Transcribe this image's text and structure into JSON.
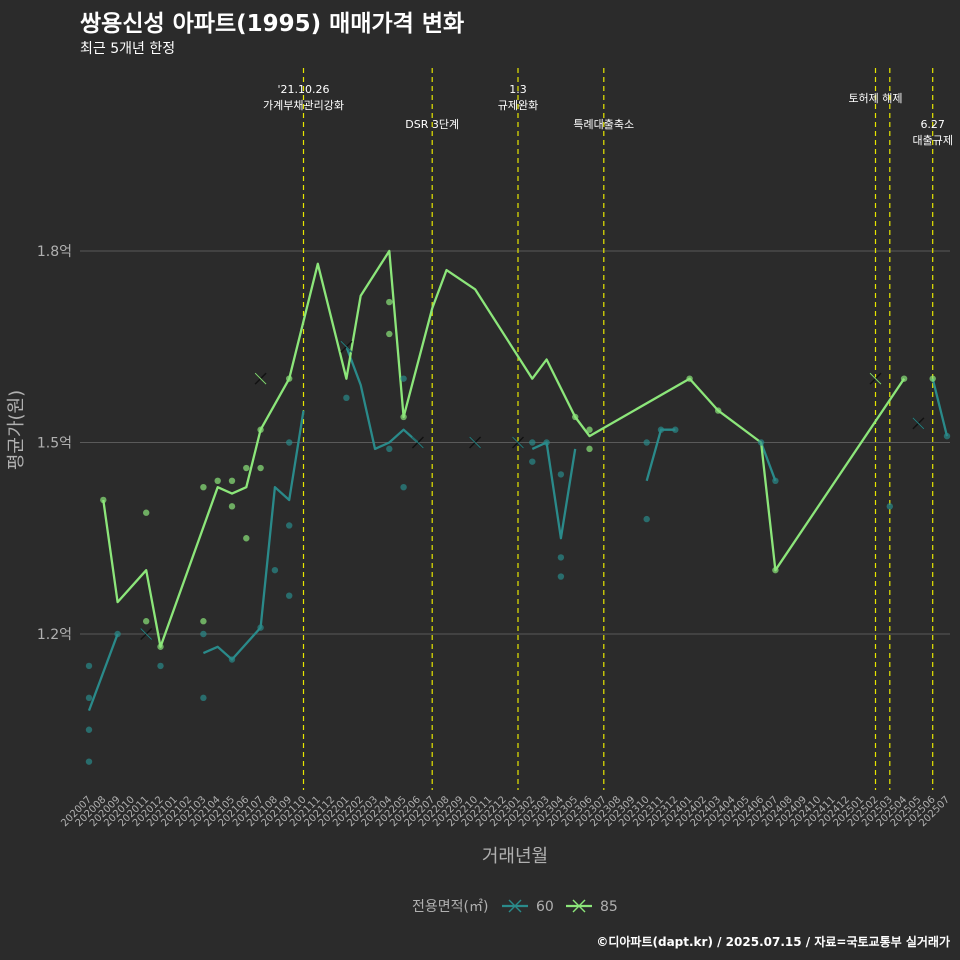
{
  "header": {
    "title": "쌍용신성 아파트(1995) 매매가격 변화",
    "subtitle": "최근 5개년 한정"
  },
  "caption": "©디아파트(dapt.kr) / 2025.07.15 / 자료=국토교통부 실거래가",
  "colors": {
    "background": "#2b2b2b",
    "grid": "#5a5a5a",
    "axis_text": "#b0b0b0",
    "event_line": "#e6e600",
    "series_60": "#2a8a8a",
    "series_85": "#8ce67a"
  },
  "chart_data": {
    "type": "line",
    "xlabel": "거래년월",
    "ylabel": "평균가(원)",
    "ylim": [
      1.0,
      1.93
    ],
    "y_ticks": [
      {
        "value": 1.2,
        "label": "1.2억"
      },
      {
        "value": 1.5,
        "label": "1.5억"
      },
      {
        "value": 1.8,
        "label": "1.8억"
      }
    ],
    "categories": [
      "202007",
      "202008",
      "202009",
      "202010",
      "202011",
      "202012",
      "202101",
      "202102",
      "202103",
      "202104",
      "202105",
      "202106",
      "202107",
      "202108",
      "202109",
      "202110",
      "202111",
      "202112",
      "202201",
      "202202",
      "202203",
      "202204",
      "202205",
      "202206",
      "202207",
      "202208",
      "202209",
      "202210",
      "202211",
      "202212",
      "202301",
      "202302",
      "202303",
      "202304",
      "202305",
      "202306",
      "202307",
      "202308",
      "202309",
      "202310",
      "202311",
      "202312",
      "202401",
      "202402",
      "202403",
      "202404",
      "202405",
      "202406",
      "202407",
      "202408",
      "202409",
      "202410",
      "202411",
      "202412",
      "202501",
      "202502",
      "202503",
      "202504",
      "202505",
      "202506",
      "202507"
    ],
    "legend": {
      "title": "전용면적(㎡)",
      "position": "bottom"
    },
    "series": [
      {
        "name": "60",
        "color": "#2a8a8a",
        "line_segments": [
          [
            [
              "202007",
              1.08
            ],
            [
              "202009",
              1.2
            ]
          ],
          [
            [
              "202103",
              1.17
            ],
            [
              "202104",
              1.18
            ],
            [
              "202105",
              1.16
            ],
            [
              "202107",
              1.21
            ],
            [
              "202108",
              1.43
            ],
            [
              "202109",
              1.41
            ],
            [
              "202110",
              1.55
            ]
          ],
          [
            [
              "202201",
              1.65
            ],
            [
              "202202",
              1.59
            ],
            [
              "202203",
              1.49
            ],
            [
              "202204",
              1.5
            ],
            [
              "202205",
              1.52
            ],
            [
              "202206",
              1.5
            ]
          ],
          [
            [
              "202302",
              1.49
            ],
            [
              "202303",
              1.5
            ],
            [
              "202304",
              1.35
            ],
            [
              "202305",
              1.49
            ]
          ],
          [
            [
              "202310",
              1.44
            ],
            [
              "202311",
              1.52
            ],
            [
              "202312",
              1.52
            ]
          ],
          [
            [
              "202406",
              1.5
            ],
            [
              "202407",
              1.44
            ]
          ],
          [
            [
              "202506",
              1.6
            ],
            [
              "202507",
              1.51
            ]
          ]
        ],
        "points": [
          [
            "202007",
            1.15
          ],
          [
            "202007",
            1.1
          ],
          [
            "202007",
            1.05
          ],
          [
            "202007",
            1.0
          ],
          [
            "202009",
            1.2
          ],
          [
            "202012",
            1.15
          ],
          [
            "202103",
            1.2
          ],
          [
            "202103",
            1.1
          ],
          [
            "202105",
            1.16
          ],
          [
            "202107",
            1.21
          ],
          [
            "202108",
            1.3
          ],
          [
            "202109",
            1.26
          ],
          [
            "202109",
            1.37
          ],
          [
            "202109",
            1.5
          ],
          [
            "202201",
            1.57
          ],
          [
            "202204",
            1.49
          ],
          [
            "202205",
            1.6
          ],
          [
            "202205",
            1.43
          ],
          [
            "202302",
            1.47
          ],
          [
            "202302",
            1.5
          ],
          [
            "202303",
            1.5
          ],
          [
            "202304",
            1.45
          ],
          [
            "202304",
            1.32
          ],
          [
            "202304",
            1.29
          ],
          [
            "202310",
            1.5
          ],
          [
            "202310",
            1.38
          ],
          [
            "202311",
            1.52
          ],
          [
            "202312",
            1.52
          ],
          [
            "202406",
            1.5
          ],
          [
            "202407",
            1.44
          ],
          [
            "202503",
            1.4
          ],
          [
            "202507",
            1.51
          ]
        ],
        "cross_points": [
          [
            "202011",
            1.2
          ],
          [
            "202201",
            1.65
          ],
          [
            "202206",
            1.5
          ],
          [
            "202210",
            1.5
          ],
          [
            "202301",
            1.5
          ],
          [
            "202505",
            1.53
          ]
        ]
      },
      {
        "name": "85",
        "color": "#8ce67a",
        "line_segments": [
          [
            [
              "202008",
              1.41
            ],
            [
              "202009",
              1.25
            ],
            [
              "202011",
              1.3
            ],
            [
              "202012",
              1.18
            ],
            [
              "202104",
              1.43
            ],
            [
              "202105",
              1.42
            ],
            [
              "202106",
              1.43
            ],
            [
              "202107",
              1.52
            ],
            [
              "202109",
              1.6
            ],
            [
              "202111",
              1.78
            ],
            [
              "202201",
              1.6
            ],
            [
              "202202",
              1.73
            ],
            [
              "202204",
              1.8
            ],
            [
              "202205",
              1.54
            ],
            [
              "202207",
              1.71
            ],
            [
              "202208",
              1.77
            ],
            [
              "202210",
              1.74
            ],
            [
              "202302",
              1.6
            ],
            [
              "202303",
              1.63
            ],
            [
              "202305",
              1.54
            ],
            [
              "202306",
              1.51
            ],
            [
              "202401",
              1.6
            ],
            [
              "202403",
              1.55
            ],
            [
              "202406",
              1.5
            ],
            [
              "202407",
              1.3
            ],
            [
              "202504",
              1.6
            ]
          ]
        ],
        "points": [
          [
            "202008",
            1.41
          ],
          [
            "202011",
            1.39
          ],
          [
            "202011",
            1.22
          ],
          [
            "202012",
            1.18
          ],
          [
            "202103",
            1.43
          ],
          [
            "202103",
            1.22
          ],
          [
            "202104",
            1.44
          ],
          [
            "202105",
            1.44
          ],
          [
            "202105",
            1.4
          ],
          [
            "202106",
            1.46
          ],
          [
            "202106",
            1.35
          ],
          [
            "202107",
            1.46
          ],
          [
            "202107",
            1.52
          ],
          [
            "202109",
            1.6
          ],
          [
            "202204",
            1.72
          ],
          [
            "202204",
            1.67
          ],
          [
            "202205",
            1.54
          ],
          [
            "202305",
            1.54
          ],
          [
            "202306",
            1.52
          ],
          [
            "202306",
            1.49
          ],
          [
            "202401",
            1.6
          ],
          [
            "202403",
            1.55
          ],
          [
            "202407",
            1.3
          ],
          [
            "202504",
            1.6
          ],
          [
            "202506",
            1.6
          ]
        ],
        "cross_points": [
          [
            "202107",
            1.6
          ],
          [
            "202502",
            1.6
          ]
        ]
      }
    ],
    "events": [
      {
        "x": "202110",
        "lines": [
          "'21.10.26",
          "가계부채관리강화"
        ],
        "row": 0
      },
      {
        "x": "202207",
        "lines": [
          "DSR 3단계"
        ],
        "row": 2
      },
      {
        "x": "202301",
        "lines": [
          "1.3",
          "규제완화"
        ],
        "row": 0
      },
      {
        "x": "202307",
        "lines": [
          "특례대출축소"
        ],
        "row": 2
      },
      {
        "x": "202502",
        "lines": [
          "토허제 해제"
        ],
        "row": 1
      },
      {
        "x": "202503",
        "lines": [],
        "row": 1
      },
      {
        "x": "202506",
        "lines": [
          "6.27",
          "대출규제"
        ],
        "row": 2
      }
    ]
  }
}
